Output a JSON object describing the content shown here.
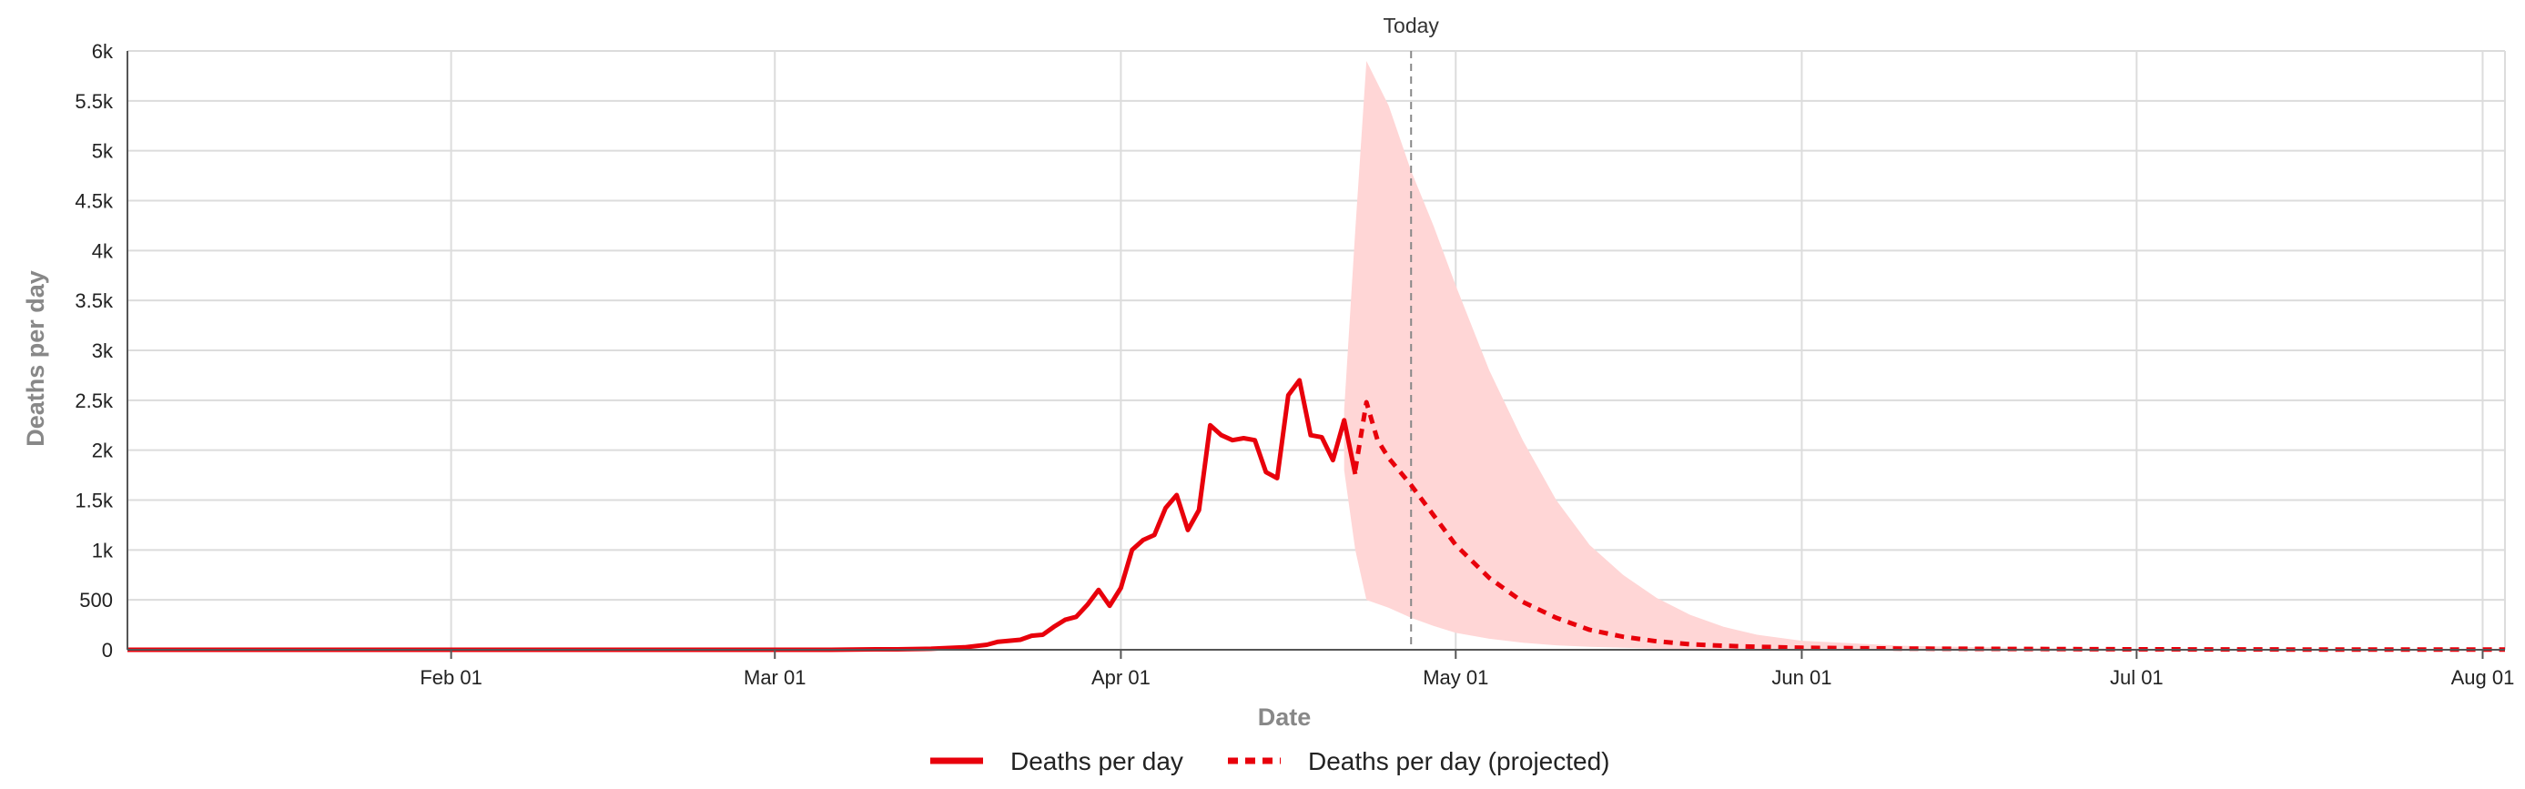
{
  "chart_data": {
    "type": "line",
    "title": "",
    "xlabel": "Date",
    "ylabel": "Deaths per day",
    "xlim": [
      "2020-01-03",
      "2020-08-03"
    ],
    "ylim": [
      0,
      6000
    ],
    "x_ticks": [
      {
        "date": "2020-02-01",
        "label": "Feb 01"
      },
      {
        "date": "2020-03-01",
        "label": "Mar 01"
      },
      {
        "date": "2020-04-01",
        "label": "Apr 01"
      },
      {
        "date": "2020-05-01",
        "label": "May 01"
      },
      {
        "date": "2020-06-01",
        "label": "Jun 01"
      },
      {
        "date": "2020-07-01",
        "label": "Jul 01"
      },
      {
        "date": "2020-08-01",
        "label": "Aug 01"
      }
    ],
    "y_ticks": [
      {
        "value": 0,
        "label": "0"
      },
      {
        "value": 500,
        "label": "500"
      },
      {
        "value": 1000,
        "label": "1k"
      },
      {
        "value": 1500,
        "label": "1.5k"
      },
      {
        "value": 2000,
        "label": "2k"
      },
      {
        "value": 2500,
        "label": "2.5k"
      },
      {
        "value": 3000,
        "label": "3k"
      },
      {
        "value": 3500,
        "label": "3.5k"
      },
      {
        "value": 4000,
        "label": "4k"
      },
      {
        "value": 4500,
        "label": "4.5k"
      },
      {
        "value": 5000,
        "label": "5k"
      },
      {
        "value": 5500,
        "label": "5.5k"
      },
      {
        "value": 6000,
        "label": "6k"
      }
    ],
    "grid": true,
    "legend_position": "bottom-center",
    "today": {
      "date": "2020-04-27",
      "label": "Today"
    },
    "colors": {
      "line": "#e8000b",
      "band": "#ffd6d6",
      "grid": "#dcdcdc",
      "today_line": "#888888"
    },
    "series": [
      {
        "name": "Deaths per day",
        "style": "solid",
        "points": [
          [
            "2020-01-03",
            0
          ],
          [
            "2020-03-01",
            0
          ],
          [
            "2020-03-06",
            0
          ],
          [
            "2020-03-10",
            5
          ],
          [
            "2020-03-12",
            5
          ],
          [
            "2020-03-15",
            10
          ],
          [
            "2020-03-18",
            25
          ],
          [
            "2020-03-20",
            50
          ],
          [
            "2020-03-21",
            80
          ],
          [
            "2020-03-23",
            100
          ],
          [
            "2020-03-24",
            140
          ],
          [
            "2020-03-25",
            150
          ],
          [
            "2020-03-26",
            230
          ],
          [
            "2020-03-27",
            300
          ],
          [
            "2020-03-28",
            330
          ],
          [
            "2020-03-29",
            450
          ],
          [
            "2020-03-30",
            600
          ],
          [
            "2020-03-31",
            440
          ],
          [
            "2020-04-01",
            620
          ],
          [
            "2020-04-02",
            1000
          ],
          [
            "2020-04-03",
            1100
          ],
          [
            "2020-04-04",
            1150
          ],
          [
            "2020-04-05",
            1420
          ],
          [
            "2020-04-06",
            1550
          ],
          [
            "2020-04-07",
            1200
          ],
          [
            "2020-04-08",
            1400
          ],
          [
            "2020-04-09",
            2250
          ],
          [
            "2020-04-10",
            2150
          ],
          [
            "2020-04-11",
            2100
          ],
          [
            "2020-04-12",
            2120
          ],
          [
            "2020-04-13",
            2100
          ],
          [
            "2020-04-14",
            1780
          ],
          [
            "2020-04-15",
            1720
          ],
          [
            "2020-04-16",
            2550
          ],
          [
            "2020-04-17",
            2700
          ],
          [
            "2020-04-18",
            2150
          ],
          [
            "2020-04-19",
            2130
          ],
          [
            "2020-04-20",
            1900
          ],
          [
            "2020-04-21",
            2300
          ],
          [
            "2020-04-22",
            1760
          ]
        ]
      },
      {
        "name": "Deaths per day (projected)",
        "style": "dashed",
        "points": [
          [
            "2020-04-22",
            1800
          ],
          [
            "2020-04-23",
            2480
          ],
          [
            "2020-04-24",
            2100
          ],
          [
            "2020-04-25",
            1920
          ],
          [
            "2020-04-27",
            1650
          ],
          [
            "2020-04-29",
            1350
          ],
          [
            "2020-05-01",
            1050
          ],
          [
            "2020-05-04",
            720
          ],
          [
            "2020-05-07",
            480
          ],
          [
            "2020-05-10",
            320
          ],
          [
            "2020-05-13",
            200
          ],
          [
            "2020-05-16",
            130
          ],
          [
            "2020-05-19",
            85
          ],
          [
            "2020-05-22",
            55
          ],
          [
            "2020-05-25",
            40
          ],
          [
            "2020-05-28",
            30
          ],
          [
            "2020-06-01",
            20
          ],
          [
            "2020-06-10",
            12
          ],
          [
            "2020-06-20",
            8
          ],
          [
            "2020-07-01",
            5
          ],
          [
            "2020-07-15",
            3
          ],
          [
            "2020-08-03",
            2
          ]
        ]
      }
    ],
    "uncertainty_band": {
      "upper": [
        [
          "2020-04-21",
          2400
        ],
        [
          "2020-04-22",
          4200
        ],
        [
          "2020-04-23",
          5900
        ],
        [
          "2020-04-25",
          5450
        ],
        [
          "2020-04-27",
          4800
        ],
        [
          "2020-04-29",
          4250
        ],
        [
          "2020-05-01",
          3650
        ],
        [
          "2020-05-04",
          2800
        ],
        [
          "2020-05-07",
          2100
        ],
        [
          "2020-05-10",
          1500
        ],
        [
          "2020-05-13",
          1050
        ],
        [
          "2020-05-16",
          750
        ],
        [
          "2020-05-19",
          520
        ],
        [
          "2020-05-22",
          350
        ],
        [
          "2020-05-25",
          230
        ],
        [
          "2020-05-28",
          150
        ],
        [
          "2020-06-01",
          90
        ],
        [
          "2020-06-10",
          40
        ],
        [
          "2020-06-20",
          20
        ],
        [
          "2020-07-01",
          10
        ],
        [
          "2020-08-03",
          5
        ]
      ],
      "lower": [
        [
          "2020-04-21",
          1800
        ],
        [
          "2020-04-22",
          1000
        ],
        [
          "2020-04-23",
          500
        ],
        [
          "2020-04-25",
          420
        ],
        [
          "2020-04-27",
          320
        ],
        [
          "2020-04-29",
          240
        ],
        [
          "2020-05-01",
          170
        ],
        [
          "2020-05-04",
          110
        ],
        [
          "2020-05-07",
          70
        ],
        [
          "2020-05-10",
          45
        ],
        [
          "2020-05-13",
          30
        ],
        [
          "2020-05-16",
          20
        ],
        [
          "2020-05-19",
          12
        ],
        [
          "2020-05-22",
          8
        ],
        [
          "2020-05-25",
          5
        ],
        [
          "2020-06-01",
          3
        ],
        [
          "2020-07-01",
          1
        ],
        [
          "2020-08-03",
          0
        ]
      ]
    }
  }
}
